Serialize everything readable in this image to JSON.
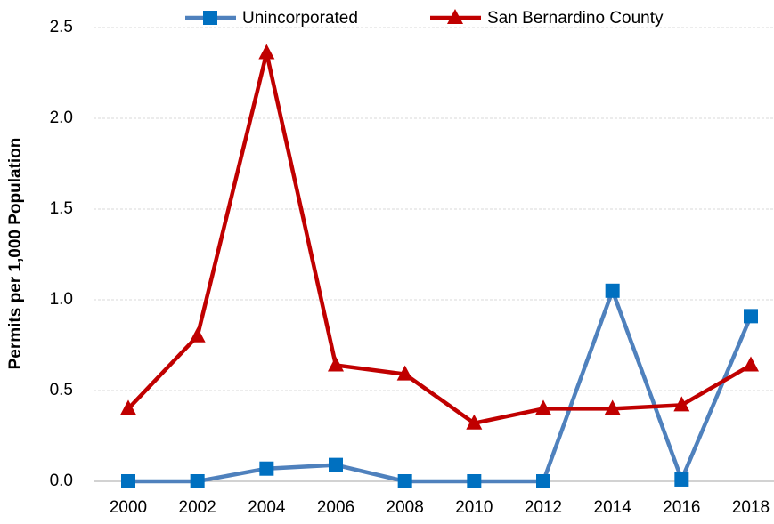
{
  "chart_data": {
    "type": "line",
    "y_label": "Permits per 1,000 Population",
    "categories": [
      "2000",
      "2002",
      "2004",
      "2006",
      "2008",
      "2010",
      "2012",
      "2014",
      "2016",
      "2018"
    ],
    "series": [
      {
        "name": "Unincorporated",
        "color": "#4f81bd",
        "marker_color": "#0070c0",
        "marker": "square",
        "values": [
          0,
          0,
          0.07,
          0.09,
          0,
          0,
          0,
          1.05,
          0.01,
          0.91
        ]
      },
      {
        "name": "San Bernardino County",
        "color": "#c00000",
        "marker_color": "#c00000",
        "marker": "triangle",
        "values": [
          0.4,
          0.8,
          2.36,
          0.64,
          0.59,
          0.32,
          0.4,
          0.4,
          0.42,
          0.64
        ]
      }
    ],
    "ylim": [
      0,
      2.5
    ],
    "yticks": [
      {
        "value": 0,
        "label": "0.0"
      },
      {
        "value": 0.5,
        "label": "0.5"
      },
      {
        "value": 1,
        "label": "1.0"
      },
      {
        "value": 1.5,
        "label": "1.5"
      },
      {
        "value": 2,
        "label": "2.0"
      },
      {
        "value": 2.5,
        "label": "2.5"
      }
    ],
    "grid": true,
    "legend": "top"
  }
}
